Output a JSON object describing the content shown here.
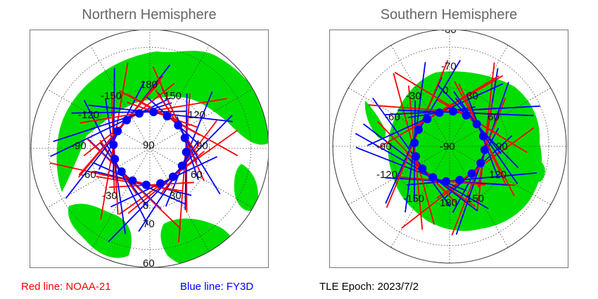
{
  "panels": {
    "north": {
      "title": "Northern Hemisphere",
      "center_label": "90",
      "lon_labels": [
        "180",
        "-150",
        "150",
        "-120",
        "120",
        "-90",
        "90",
        "-60",
        "60",
        "-30",
        "30",
        "0"
      ],
      "lat_labels": [
        "70",
        "60"
      ]
    },
    "south": {
      "title": "Southern Hemisphere",
      "center_label": "-90",
      "lon_labels": [
        "0",
        "-30",
        "30",
        "-60",
        "60",
        "-90",
        "90",
        "-120",
        "120",
        "-150",
        "150",
        "180"
      ],
      "lat_labels": [
        "-70",
        "-60"
      ]
    }
  },
  "legend": {
    "red_line": "Red line: NOAA-21",
    "blue_line": "Blue line: FY3D",
    "epoch": "TLE Epoch: 2023/7/2"
  },
  "colors": {
    "land": "#00dd00",
    "ocean": "#ffffff",
    "noaa21": "#ff0000",
    "fy3d": "#0000ff",
    "grid": "#444444"
  }
}
